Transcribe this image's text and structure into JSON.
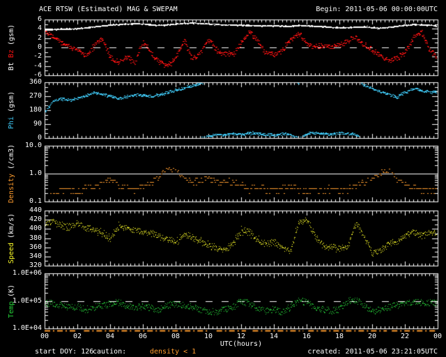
{
  "header": {
    "title": "ACE RTSW (Estimated) MAG & SWEPAM",
    "begin": "Begin: 2011-05-06 00:00:00UTC"
  },
  "footer": {
    "xaxis_label": "UTC(hours)",
    "start_doy": "start DOY: 126",
    "caution_label": "caution:",
    "caution_value": "density < 1",
    "created": "created: 2011-05-06 23:21:05UTC",
    "caution_segments_hours": [
      [
        0,
        2.0
      ],
      [
        2.4,
        5.3
      ],
      [
        5.5,
        10.1
      ],
      [
        10.5,
        12.3
      ],
      [
        12.7,
        15.8
      ],
      [
        16.1,
        20.9
      ],
      [
        21.2,
        24
      ]
    ]
  },
  "colors": {
    "background": "#000000",
    "white": "#ffffff",
    "bz_red": "#ff1212",
    "phi_cyan": "#3fc8f5",
    "density_orange": "#ff9c2e",
    "speed_yellow": "#ffff29",
    "temp_green": "#26d339"
  },
  "x_axis": {
    "tick_labels": [
      "00",
      "02",
      "04",
      "06",
      "08",
      "10",
      "12",
      "14",
      "16",
      "18",
      "20",
      "22",
      "00"
    ],
    "label_hours": [
      0,
      2,
      4,
      6,
      8,
      10,
      12,
      14,
      16,
      18,
      20,
      22,
      24
    ],
    "minor_step_hours": 0.25,
    "start_hour": 0,
    "end_hour": 24
  },
  "chart_data": [
    {
      "id": "bt_bz",
      "type": "scatter",
      "title": "Bt Bz (gsm)",
      "ylabel_parts": [
        {
          "text": "Bt",
          "color": "white"
        },
        {
          "text": "Bz",
          "color": "bz_red"
        },
        {
          "text": "(gsm)",
          "color": "white"
        }
      ],
      "yscale": "linear",
      "ylim": [
        -6,
        6
      ],
      "yticks": {
        "labels": [
          "6",
          "4",
          "2",
          "0",
          "-2",
          "-4",
          "-6"
        ],
        "values": [
          6,
          4,
          2,
          0,
          -2,
          -4,
          -6
        ]
      },
      "yminors": [
        5,
        3,
        1,
        -1,
        -3,
        -5
      ],
      "ref_lines": [
        {
          "value": 0,
          "style": "dashed"
        }
      ],
      "x": {
        "start_hour": 0,
        "step_hours": 0.5
      },
      "series": [
        {
          "name": "Bt",
          "color": "white",
          "values": [
            3.8,
            3.9,
            4.0,
            4.0,
            4.1,
            4.3,
            4.5,
            4.7,
            4.9,
            5.0,
            5.1,
            5.2,
            5.1,
            4.9,
            4.8,
            4.9,
            5.1,
            5.2,
            5.3,
            5.2,
            5.1,
            5.0,
            4.9,
            4.9,
            4.8,
            4.8,
            4.7,
            4.7,
            4.7,
            4.6,
            4.6,
            4.8,
            4.7,
            4.6,
            4.5,
            4.4,
            4.3,
            4.3,
            4.4,
            4.5,
            4.3,
            4.2,
            4.4,
            4.6,
            4.8,
            5.0,
            4.9,
            4.8,
            4.6
          ]
        },
        {
          "name": "Bz",
          "color": "bz_red",
          "values": [
            3.5,
            2.6,
            1.2,
            0.2,
            -0.6,
            -1.6,
            0.4,
            2.0,
            -2.2,
            -3.3,
            -2.0,
            -3.2,
            1.4,
            -1.4,
            -3.0,
            -4.0,
            -2.0,
            1.6,
            -2.6,
            -1.0,
            1.8,
            -0.6,
            -1.2,
            -1.6,
            1.0,
            3.4,
            1.4,
            -1.2,
            -1.6,
            -0.6,
            2.0,
            3.2,
            0.8,
            0.2,
            0.4,
            0.0,
            0.6,
            1.6,
            2.2,
            0.4,
            -0.6,
            -1.6,
            -3.0,
            -2.0,
            -1.0,
            2.2,
            3.2,
            -0.6,
            -2.4
          ]
        }
      ]
    },
    {
      "id": "phi",
      "type": "scatter",
      "title": "Phi (gsm)",
      "ylabel_parts": [
        {
          "text": "Phi",
          "color": "phi_cyan"
        },
        {
          "text": "(gsm)",
          "color": "white"
        }
      ],
      "yscale": "linear",
      "ylim": [
        0,
        360
      ],
      "yticks": {
        "labels": [
          "360",
          "270",
          "180",
          "90",
          "0"
        ],
        "values": [
          360,
          270,
          180,
          90,
          0
        ]
      },
      "yminors": [
        330,
        300,
        240,
        210,
        150,
        120,
        60,
        30
      ],
      "ref_lines": [],
      "x": {
        "start_hour": 0,
        "step_hours": 0.5
      },
      "series": [
        {
          "name": "Phi",
          "color": "phi_cyan",
          "values": [
            170,
            240,
            255,
            245,
            260,
            275,
            295,
            285,
            270,
            255,
            270,
            280,
            275,
            270,
            280,
            295,
            310,
            325,
            340,
            355,
            15,
            25,
            20,
            30,
            25,
            35,
            30,
            25,
            20,
            30,
            25,
            355,
            30,
            35,
            30,
            25,
            35,
            30,
            25,
            340,
            320,
            300,
            285,
            265,
            300,
            320,
            310,
            295,
            305
          ]
        }
      ]
    },
    {
      "id": "density",
      "type": "scatter",
      "title": "Density (/cm3)",
      "ylabel_parts": [
        {
          "text": "Density",
          "color": "density_orange"
        },
        {
          "text": "(/cm3)",
          "color": "white"
        }
      ],
      "yscale": "log",
      "ylim": [
        0.1,
        10
      ],
      "yticks": {
        "labels": [
          "10.0",
          "1.0",
          "0.1"
        ],
        "values": [
          10,
          1,
          0.1
        ]
      },
      "yminors": [
        9,
        8,
        7,
        6,
        5,
        4,
        3,
        2,
        0.9,
        0.8,
        0.7,
        0.6,
        0.5,
        0.4,
        0.3,
        0.2
      ],
      "ref_lines": [
        {
          "value": 1.0,
          "style": "solid"
        }
      ],
      "x": {
        "start_hour": 0,
        "step_hours": 0.5
      },
      "series": [
        {
          "name": "Density",
          "color": "density_orange",
          "values": [
            0.12,
            0.15,
            0.3,
            0.25,
            0.2,
            0.35,
            0.3,
            0.5,
            0.6,
            0.4,
            0.3,
            0.25,
            0.4,
            0.5,
            0.8,
            1.5,
            1.2,
            0.7,
            0.5,
            0.6,
            0.7,
            0.5,
            0.6,
            0.5,
            0.4,
            0.3,
            0.35,
            0.3,
            0.25,
            0.3,
            0.35,
            0.3,
            0.25,
            0.3,
            0.25,
            0.3,
            0.25,
            0.3,
            0.35,
            0.5,
            0.8,
            1.1,
            1.3,
            0.6,
            0.4,
            0.35,
            0.3,
            0.25,
            0.3
          ]
        }
      ]
    },
    {
      "id": "speed",
      "type": "scatter",
      "title": "Speed (km/s)",
      "ylabel_parts": [
        {
          "text": "Speed",
          "color": "speed_yellow"
        },
        {
          "text": "(km/s)",
          "color": "white"
        }
      ],
      "yscale": "linear",
      "ylim": [
        320,
        440
      ],
      "yticks": {
        "labels": [
          "440",
          "420",
          "400",
          "380",
          "360",
          "340",
          "320"
        ],
        "values": [
          440,
          420,
          400,
          380,
          360,
          340,
          320
        ]
      },
      "yminors": [
        430,
        410,
        390,
        370,
        350,
        330
      ],
      "ref_lines": [],
      "x": {
        "start_hour": 0,
        "step_hours": 0.5
      },
      "series": [
        {
          "name": "Speed",
          "color": "speed_yellow",
          "values": [
            415,
            418,
            408,
            405,
            412,
            405,
            398,
            392,
            378,
            408,
            402,
            398,
            395,
            390,
            385,
            378,
            372,
            388,
            382,
            375,
            365,
            358,
            355,
            368,
            398,
            392,
            378,
            368,
            372,
            360,
            352,
            415,
            420,
            385,
            365,
            360,
            358,
            362,
            412,
            385,
            348,
            352,
            368,
            372,
            385,
            395,
            388,
            392,
            390
          ]
        }
      ]
    },
    {
      "id": "temp",
      "type": "scatter",
      "title": "Temp (K)",
      "ylabel_parts": [
        {
          "text": "Temp",
          "color": "temp_green"
        },
        {
          "text": "(K)",
          "color": "white"
        }
      ],
      "yscale": "log",
      "ylim": [
        10000,
        1000000
      ],
      "yticks": {
        "labels": [
          "1.0E+06",
          "1.0E+05",
          "1.0E+04"
        ],
        "values": [
          1000000,
          100000,
          10000
        ]
      },
      "yminors": [
        900000,
        800000,
        700000,
        600000,
        500000,
        400000,
        300000,
        200000,
        90000,
        80000,
        70000,
        60000,
        50000,
        40000,
        30000,
        20000
      ],
      "ref_lines": [
        {
          "value": 100000,
          "style": "dashed"
        }
      ],
      "x": {
        "start_hour": 0,
        "step_hours": 0.5
      },
      "series": [
        {
          "name": "Temp",
          "color": "temp_green",
          "values": [
            90000,
            80000,
            70000,
            60000,
            65000,
            50000,
            60000,
            70000,
            80000,
            90000,
            70000,
            60000,
            65000,
            55000,
            50000,
            70000,
            80000,
            70000,
            60000,
            50000,
            45000,
            40000,
            50000,
            60000,
            100000,
            80000,
            50000,
            45000,
            50000,
            40000,
            60000,
            110000,
            90000,
            60000,
            50000,
            45000,
            50000,
            100000,
            110000,
            70000,
            40000,
            50000,
            60000,
            70000,
            80000,
            100000,
            90000,
            85000,
            90000
          ]
        }
      ]
    }
  ]
}
